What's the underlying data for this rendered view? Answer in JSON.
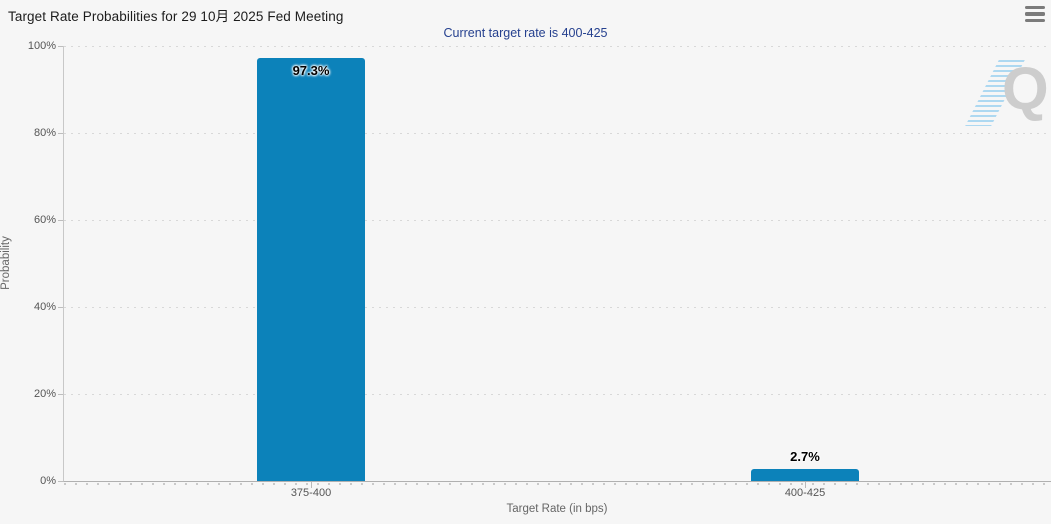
{
  "header": {
    "menu_icon": "hamburger-menu-icon"
  },
  "watermark": {
    "letter": "Q"
  },
  "colors": {
    "bar": "#0c82ba",
    "subtitle_text": "#26418f",
    "title_text": "#1c1c1c",
    "axis_text": "#666666",
    "tick_text": "#555555",
    "gridline": "#d8d8d8",
    "background": "#f6f6f6"
  },
  "chart_data": {
    "type": "bar",
    "title": "Target Rate Probabilities for 29 10月 2025 Fed Meeting",
    "subtitle": "Current target rate is 400-425",
    "categories": [
      "375-400",
      "400-425"
    ],
    "values": [
      97.3,
      2.7
    ],
    "value_labels": [
      "97.3%",
      "2.7%"
    ],
    "xlabel": "Target Rate (in bps)",
    "ylabel": "Probability",
    "ylim": [
      0,
      100
    ],
    "yticks": [
      0,
      20,
      40,
      60,
      80,
      100
    ],
    "ytick_labels": [
      "0%",
      "20%",
      "40%",
      "60%",
      "80%",
      "100%"
    ],
    "grid": "horizontal-dotted",
    "legend": false,
    "bar_color": "#0c82ba"
  }
}
